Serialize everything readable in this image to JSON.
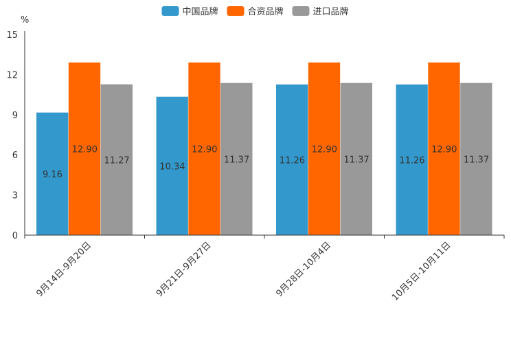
{
  "chart_data": {
    "type": "bar",
    "title": "",
    "xlabel": "",
    "ylabel": "%",
    "ylim": [
      0,
      15
    ],
    "yticks": [
      0,
      3,
      6,
      9,
      12,
      15
    ],
    "categories": [
      "9月14日-9月20日",
      "9月21日-9月27日",
      "9月28日-10月4日",
      "10月5日-10月11日"
    ],
    "series": [
      {
        "name": "中国品牌",
        "color": "#3399cc",
        "values": [
          9.16,
          10.34,
          11.26,
          11.26
        ],
        "labels": [
          "9.16",
          "10.34",
          "11.26",
          "11.26"
        ]
      },
      {
        "name": "合资品牌",
        "color": "#ff6600",
        "values": [
          12.9,
          12.9,
          12.9,
          12.9
        ],
        "labels": [
          "12.90",
          "12.90",
          "12.90",
          "12.90"
        ]
      },
      {
        "name": "进口品牌",
        "color": "#999999",
        "values": [
          11.27,
          11.37,
          11.37,
          11.37
        ],
        "labels": [
          "11.27",
          "11.37",
          "11.37",
          "11.37"
        ]
      }
    ],
    "legend": "top-center",
    "grid": false
  }
}
